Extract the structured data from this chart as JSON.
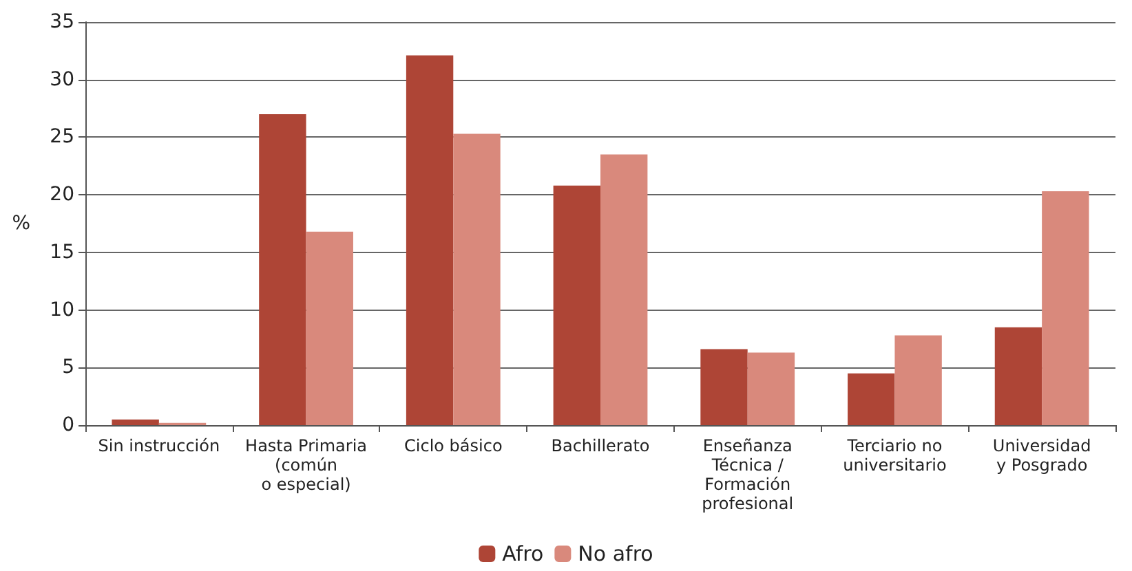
{
  "chart_data": {
    "type": "bar",
    "ylabel": "%",
    "categories": [
      "Sin instrucción",
      "Hasta Primaria\n(común\no especial)",
      "Ciclo básico",
      "Bachillerato",
      "Enseñanza\nTécnica /\nFormación\nprofesional",
      "Terciario no\nuniversitario",
      "Universidad\ny Posgrado"
    ],
    "series": [
      {
        "name": "Afro",
        "color": "#ae4536",
        "values": [
          0.5,
          27.0,
          32.1,
          20.8,
          6.6,
          4.5,
          8.5
        ]
      },
      {
        "name": "No afro",
        "color": "#d9897c",
        "values": [
          0.2,
          16.8,
          25.3,
          23.5,
          6.3,
          7.8,
          20.3
        ]
      }
    ],
    "ylim": [
      0,
      35
    ],
    "yticks": [
      0,
      5,
      10,
      15,
      20,
      25,
      30,
      35
    ],
    "grid": "y",
    "legend": "bottom"
  }
}
